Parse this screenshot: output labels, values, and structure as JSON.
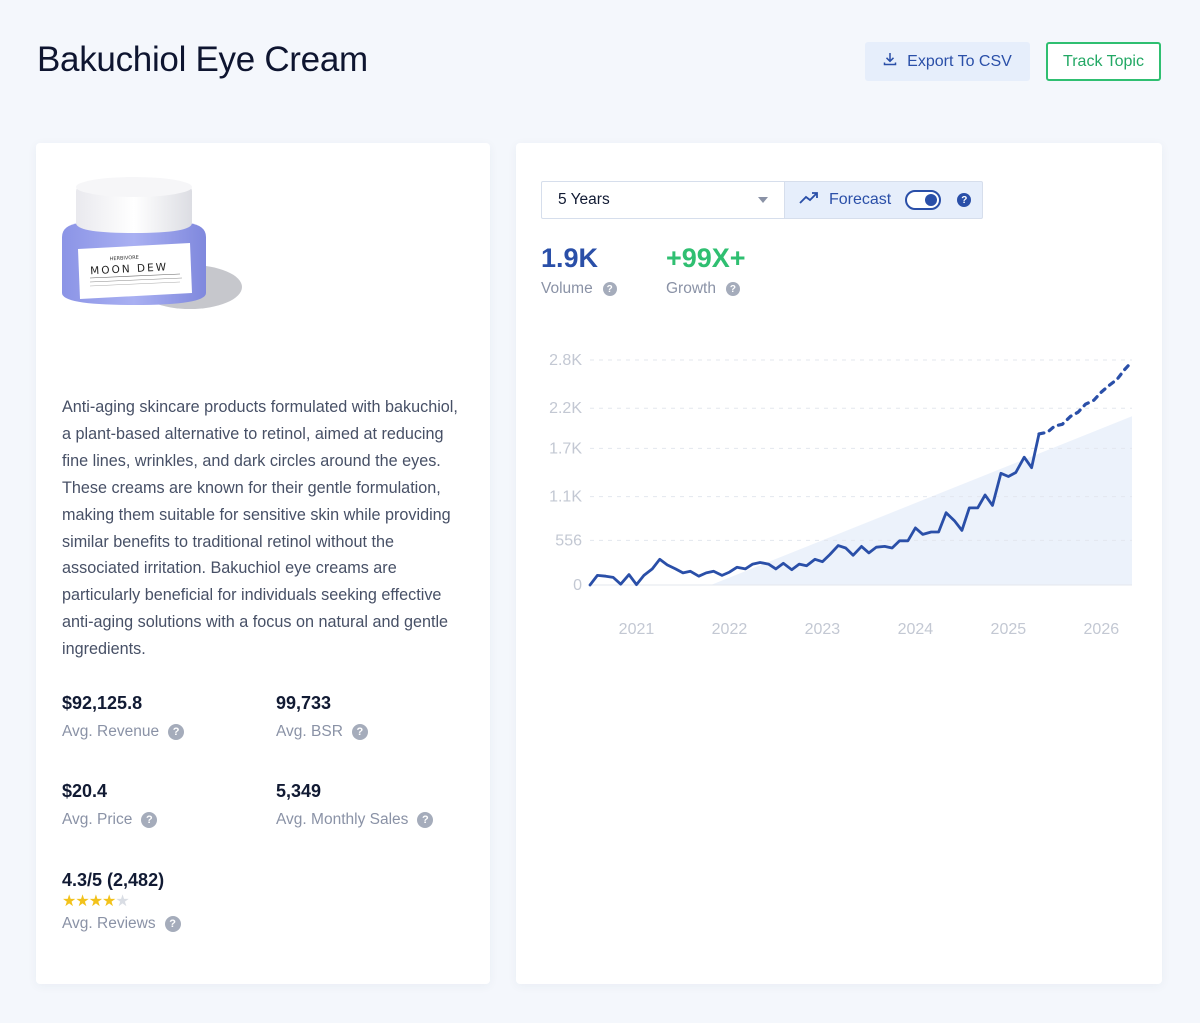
{
  "header": {
    "title": "Bakuchiol Eye Cream",
    "export_label": "Export To CSV",
    "track_label": "Track Topic"
  },
  "product": {
    "image_icon": "product-jar-image",
    "brand": "HERBIVORE",
    "name": "MOON DEW",
    "description": "Anti-aging skincare products formulated with bakuchiol, a plant-based alternative to retinol, aimed at reducing fine lines, wrinkles, and dark circles around the eyes. These creams are known for their gentle formulation, making them suitable for sensitive skin while providing similar benefits to traditional retinol without the associated irritation. Bakuchiol eye creams are particularly beneficial for individuals seeking effective anti-aging solutions with a focus on natural and gentle ingredients."
  },
  "metrics": {
    "revenue": {
      "value": "$92,125.8",
      "label": "Avg. Revenue"
    },
    "bsr": {
      "value": "99,733",
      "label": "Avg. BSR"
    },
    "price": {
      "value": "$20.4",
      "label": "Avg. Price"
    },
    "monthly_sales": {
      "value": "5,349",
      "label": "Avg. Monthly Sales"
    },
    "reviews": {
      "value": "4.3/5 (2,482)",
      "label": "Avg. Reviews",
      "stars": 4.3
    }
  },
  "controls": {
    "timerange": "5 Years",
    "forecast_label": "Forecast",
    "forecast_on": true
  },
  "stats": {
    "volume": {
      "value": "1.9K",
      "label": "Volume",
      "color": "#2a4fa8"
    },
    "growth": {
      "value": "+99X+",
      "label": "Growth",
      "color": "#2fbf71"
    }
  },
  "colors": {
    "accent": "#2a4fa8",
    "green": "#2fbf71"
  },
  "chart_data": {
    "type": "line",
    "grid": true,
    "x_ticks": [
      "2021",
      "2022",
      "2023",
      "2024",
      "2025",
      "2026"
    ],
    "x_tick_values": [
      2021,
      2022,
      2023,
      2024,
      2025,
      2026
    ],
    "y_ticks": [
      "0",
      "556",
      "1.1K",
      "1.7K",
      "2.2K",
      "2.8K"
    ],
    "y_tick_values": [
      0,
      556,
      1100,
      1700,
      2200,
      2800
    ],
    "xlim": [
      2020.5,
      2026.33
    ],
    "ylim": [
      0,
      2800
    ],
    "series": [
      {
        "style": "solid",
        "x": [
          2020.5,
          2020.58,
          2020.67,
          2020.75,
          2020.83,
          2020.92,
          2021.0,
          2021.08,
          2021.17,
          2021.25,
          2021.33,
          2021.42,
          2021.5,
          2021.58,
          2021.67,
          2021.75,
          2021.83,
          2021.92,
          2022.0,
          2022.08,
          2022.17,
          2022.25,
          2022.33,
          2022.42,
          2022.5,
          2022.58,
          2022.67,
          2022.75,
          2022.83,
          2022.92,
          2023.0,
          2023.08,
          2023.17,
          2023.25,
          2023.33,
          2023.42,
          2023.5,
          2023.58,
          2023.67,
          2023.75,
          2023.83,
          2023.92,
          2024.0,
          2024.08,
          2024.17,
          2024.25,
          2024.33,
          2024.42,
          2024.5,
          2024.58,
          2024.67,
          2024.75,
          2024.83,
          2024.92,
          2025.0,
          2025.08,
          2025.17,
          2025.25,
          2025.33
        ],
        "y": [
          0,
          120,
          110,
          95,
          10,
          130,
          5,
          120,
          200,
          320,
          250,
          200,
          150,
          170,
          110,
          150,
          170,
          120,
          160,
          220,
          200,
          260,
          280,
          260,
          200,
          270,
          190,
          260,
          240,
          320,
          290,
          380,
          490,
          460,
          370,
          480,
          400,
          470,
          480,
          460,
          550,
          550,
          710,
          630,
          660,
          660,
          900,
          800,
          680,
          960,
          960,
          1120,
          990,
          1390,
          1350,
          1400,
          1590,
          1460,
          1880
        ]
      },
      {
        "style": "dashed",
        "x": [
          2025.33,
          2025.42,
          2025.5,
          2025.58,
          2025.67,
          2025.75,
          2025.83,
          2025.92,
          2026.0,
          2026.08,
          2026.17,
          2026.25,
          2026.33
        ],
        "y": [
          1880,
          1900,
          1980,
          2000,
          2100,
          2150,
          2250,
          2300,
          2400,
          2480,
          2560,
          2680,
          2780
        ]
      }
    ],
    "trend_area": {
      "x": [
        2021.8,
        2026.33
      ],
      "y": [
        0,
        2100
      ]
    }
  }
}
